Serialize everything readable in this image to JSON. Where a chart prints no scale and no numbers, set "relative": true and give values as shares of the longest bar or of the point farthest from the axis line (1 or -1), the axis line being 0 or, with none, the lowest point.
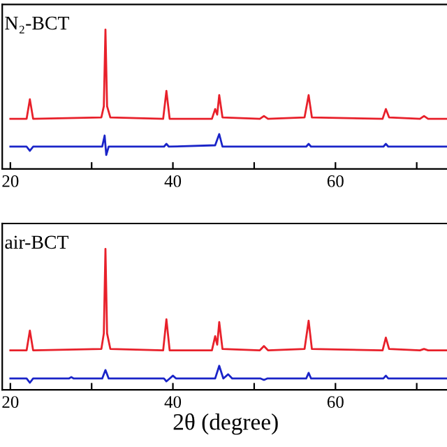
{
  "chart_data": [
    {
      "type": "line",
      "relative": true,
      "annotations": [
        "N₂-BCT"
      ],
      "xlim": [
        19,
        74
      ],
      "xticks": [
        20,
        {
          "value": 30,
          "label": null
        },
        40,
        {
          "value": 50,
          "label": null
        },
        60,
        {
          "value": 70,
          "label": null
        }
      ],
      "tick_labels": "x",
      "grid": false,
      "series": [
        {
          "color": "#e8202a",
          "x": [
            20,
            22.0,
            22.4,
            22.8,
            31.2,
            31.5,
            31.7,
            31.9,
            32.3,
            38.8,
            39.2,
            39.6,
            44.8,
            45.2,
            45.45,
            45.7,
            46.1,
            50.7,
            51.2,
            51.7,
            56.2,
            56.7,
            57.1,
            65.8,
            66.2,
            66.6,
            70.4,
            70.9,
            71.4,
            74
          ],
          "values": [
            0.36,
            0.36,
            0.5,
            0.36,
            0.37,
            0.45,
            1.0,
            0.45,
            0.37,
            0.36,
            0.56,
            0.36,
            0.36,
            0.43,
            0.39,
            0.53,
            0.37,
            0.36,
            0.38,
            0.36,
            0.37,
            0.53,
            0.37,
            0.36,
            0.43,
            0.37,
            0.36,
            0.38,
            0.36,
            0.36
          ]
        },
        {
          "color": "#1a24c8",
          "x": [
            20,
            22.0,
            22.4,
            22.8,
            31.3,
            31.6,
            31.8,
            32.1,
            38.9,
            39.2,
            39.5,
            45.2,
            45.7,
            46.1,
            56.4,
            56.7,
            57.0,
            65.9,
            66.2,
            66.5,
            74
          ],
          "values": [
            0.16,
            0.16,
            0.13,
            0.16,
            0.16,
            0.24,
            0.1,
            0.16,
            0.16,
            0.18,
            0.16,
            0.17,
            0.25,
            0.16,
            0.16,
            0.18,
            0.16,
            0.16,
            0.18,
            0.16,
            0.16
          ]
        }
      ]
    },
    {
      "type": "line",
      "relative": true,
      "annotations": [
        "air-BCT"
      ],
      "xlabel": "2θ (degree)",
      "xlim": [
        19,
        74
      ],
      "xticks": [
        20,
        {
          "value": 30,
          "label": null
        },
        40,
        {
          "value": 50,
          "label": null
        },
        60,
        {
          "value": 70,
          "label": null
        }
      ],
      "tick_labels": "x",
      "grid": false,
      "series": [
        {
          "color": "#e8202a",
          "x": [
            20,
            22.0,
            22.4,
            22.8,
            31.2,
            31.5,
            31.7,
            31.9,
            32.3,
            38.8,
            39.2,
            39.6,
            44.8,
            45.2,
            45.45,
            45.7,
            46.1,
            50.7,
            51.2,
            51.7,
            56.2,
            56.7,
            57.1,
            65.8,
            66.2,
            66.6,
            70.4,
            70.9,
            71.4,
            74
          ],
          "values": [
            0.28,
            0.28,
            0.42,
            0.28,
            0.29,
            0.4,
            1.0,
            0.4,
            0.29,
            0.28,
            0.5,
            0.28,
            0.28,
            0.38,
            0.32,
            0.48,
            0.29,
            0.28,
            0.31,
            0.28,
            0.29,
            0.49,
            0.29,
            0.28,
            0.37,
            0.29,
            0.28,
            0.29,
            0.28,
            0.28
          ]
        },
        {
          "color": "#1a24c8",
          "x": [
            20,
            22.0,
            22.4,
            22.8,
            27.2,
            27.5,
            27.8,
            31.3,
            31.7,
            32.1,
            38.9,
            39.2,
            39.6,
            40.0,
            40.4,
            45.2,
            45.7,
            46.2,
            46.8,
            47.3,
            50.8,
            51.2,
            51.6,
            56.4,
            56.7,
            57.0,
            65.9,
            66.2,
            66.5,
            74
          ],
          "values": [
            0.08,
            0.08,
            0.05,
            0.08,
            0.08,
            0.09,
            0.08,
            0.08,
            0.14,
            0.08,
            0.08,
            0.06,
            0.08,
            0.1,
            0.08,
            0.08,
            0.17,
            0.08,
            0.11,
            0.08,
            0.08,
            0.07,
            0.08,
            0.08,
            0.12,
            0.08,
            0.08,
            0.1,
            0.08,
            0.08
          ]
        }
      ]
    }
  ]
}
